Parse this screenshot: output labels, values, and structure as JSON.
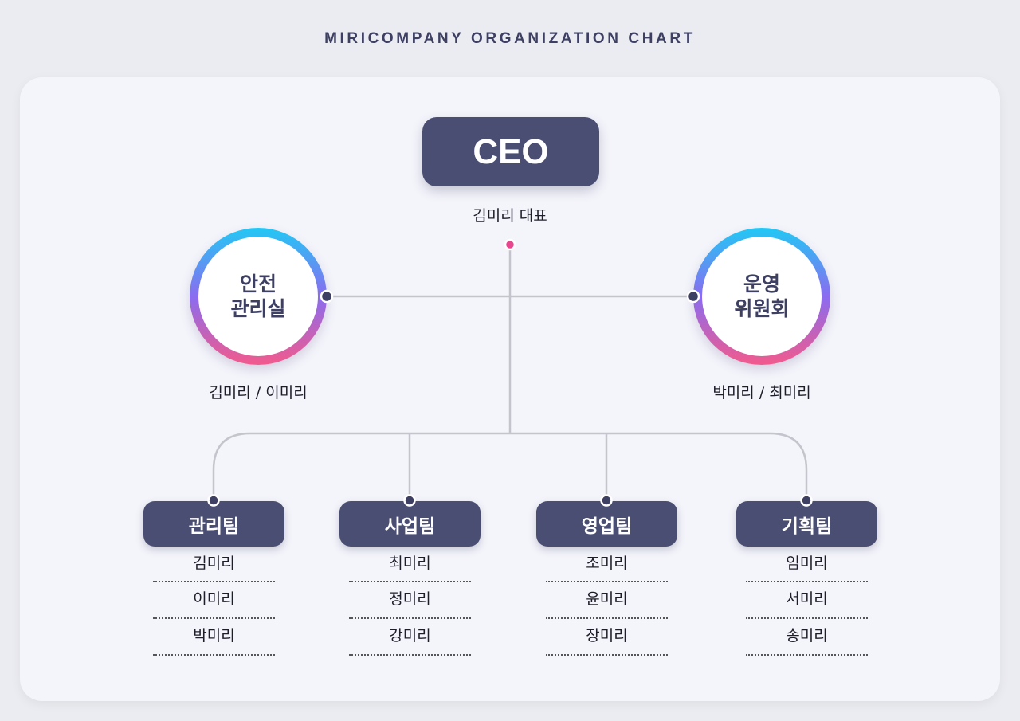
{
  "title": "MIRICOMPANY ORGANIZATION CHART",
  "ceo": {
    "label": "CEO",
    "name": "김미리 대표"
  },
  "committees": [
    {
      "label_line1": "안전",
      "label_line2": "관리실",
      "members": "김미리 / 이미리"
    },
    {
      "label_line1": "운영",
      "label_line2": "위원회",
      "members": "박미리 / 최미리"
    }
  ],
  "teams": [
    {
      "label": "관리팀",
      "members": [
        "김미리",
        "이미리",
        "박미리"
      ]
    },
    {
      "label": "사업팀",
      "members": [
        "최미리",
        "정미리",
        "강미리"
      ]
    },
    {
      "label": "영업팀",
      "members": [
        "조미리",
        "윤미리",
        "장미리"
      ]
    },
    {
      "label": "기획팀",
      "members": [
        "임미리",
        "서미리",
        "송미리"
      ]
    }
  ],
  "colors": {
    "box": "#4a4e72",
    "accent_dot": "#e8478f",
    "ring_top": "#22c8f5",
    "ring_mid": "#8a6cf0",
    "ring_bottom": "#f25a8c",
    "line": "#c4c4cc"
  }
}
